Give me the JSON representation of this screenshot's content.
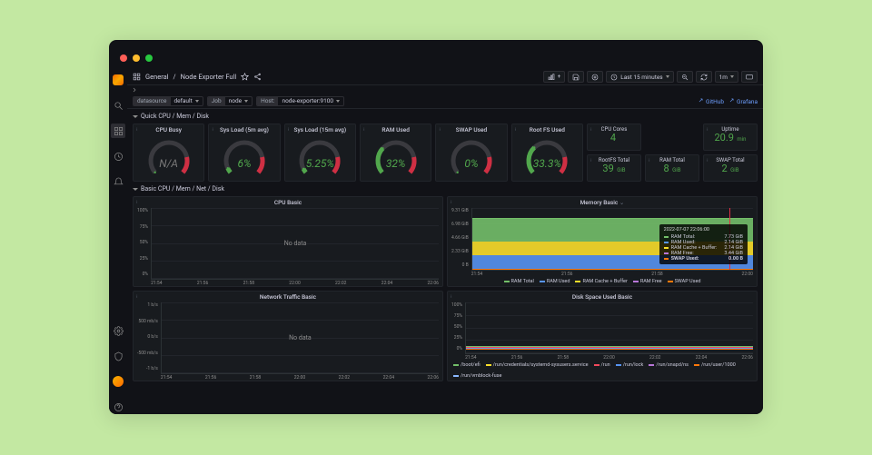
{
  "breadcrumb": {
    "part1": "General",
    "part2": "Node Exporter Full"
  },
  "topbar": {
    "time_range": "Last 15 minutes",
    "refresh": "1m"
  },
  "variables": {
    "datasource": {
      "label": "datasource",
      "value": "default"
    },
    "job": {
      "label": "Job",
      "value": "node"
    },
    "host": {
      "label": "Host:",
      "value": "node-exporter:9100"
    }
  },
  "external_links": {
    "github": "GitHub",
    "grafana": "Grafana"
  },
  "rows": {
    "quick": "Quick CPU / Mem / Disk",
    "basic": "Basic CPU / Mem / Net / Disk"
  },
  "gauges": [
    {
      "title": "CPU Busy",
      "value": "N/A",
      "pct": 0,
      "color": "#51a74c",
      "val_color": "#787878"
    },
    {
      "title": "Sys Load (5m avg)",
      "value": "6%",
      "pct": 6,
      "color": "#51a74c",
      "val_color": "#51a74c"
    },
    {
      "title": "Sys Load (15m avg)",
      "value": "5.25%",
      "pct": 5.25,
      "color": "#51a74c",
      "val_color": "#51a74c"
    },
    {
      "title": "RAM Used",
      "value": "32%",
      "pct": 32,
      "color": "#51a74c",
      "val_color": "#51a74c"
    },
    {
      "title": "SWAP Used",
      "value": "0%",
      "pct": 0,
      "color": "#51a74c",
      "val_color": "#51a74c"
    },
    {
      "title": "Root FS Used",
      "value": "33.3%",
      "pct": 33.3,
      "color": "#51a74c",
      "val_color": "#51a74c"
    }
  ],
  "stats": [
    {
      "title": "CPU Cores",
      "value": "4",
      "unit": ""
    },
    {
      "title": "RootFS Total",
      "value": "39",
      "unit": "GiB"
    },
    {
      "title": "Uptime",
      "value": "20.9",
      "unit": "min"
    },
    {
      "title": "RAM Total",
      "value": "8",
      "unit": "GiB"
    },
    {
      "title": "SWAP Total",
      "value": "2",
      "unit": "GiB"
    }
  ],
  "cpu_basic": {
    "title": "CPU Basic",
    "y_ticks": [
      "100%",
      "75%",
      "50%",
      "25%",
      "0%"
    ],
    "x_ticks": [
      "21:54",
      "21:56",
      "21:58",
      "22:00",
      "22:02",
      "22:04",
      "22:06"
    ],
    "no_data": "No data"
  },
  "memory_basic": {
    "title": "Memory Basic",
    "y_ticks": [
      "9.31 GiB",
      "6.98 GiB",
      "4.66 GiB",
      "2.33 GiB",
      "0 B"
    ],
    "x_ticks": [
      "21:54",
      "21:56",
      "21:58",
      "22:00"
    ],
    "series": [
      {
        "name": "RAM Total",
        "color": "#73bf69"
      },
      {
        "name": "RAM Used",
        "color": "#5794f2"
      },
      {
        "name": "RAM Cache + Buffer",
        "color": "#fade2a"
      },
      {
        "name": "RAM Free",
        "color": "#b877d9"
      },
      {
        "name": "SWAP Used",
        "color": "#ff780a"
      }
    ],
    "stack": {
      "total_pct": 83,
      "free_pct": 46,
      "cache_pct": 23,
      "used_pct": 23
    }
  },
  "tooltip": {
    "time": "2022-07-07 22:06:00",
    "rows": [
      {
        "label": "RAM Total:",
        "value": "7.73 GiB",
        "color": "#73bf69"
      },
      {
        "label": "RAM Used:",
        "value": "2.14 GiB",
        "color": "#5794f2"
      },
      {
        "label": "RAM Cache + Buffer:",
        "value": "2.14 GiB",
        "color": "#fade2a"
      },
      {
        "label": "RAM Free:",
        "value": "3.44 GiB",
        "color": "#b877d9"
      },
      {
        "label": "SWAP Used:",
        "value": "0.00 B",
        "color": "#ff780a",
        "bold": true
      }
    ]
  },
  "net_basic": {
    "title": "Network Traffic Basic",
    "y_ticks": [
      "1 b/s",
      "500 mb/s",
      "0 b/s",
      "-500 mb/s",
      "-1 b/s"
    ],
    "x_ticks": [
      "21:54",
      "21:56",
      "21:58",
      "22:00",
      "22:02",
      "22:04",
      "22:06"
    ],
    "no_data": "No data"
  },
  "disk_basic": {
    "title": "Disk Space Used Basic",
    "y_ticks": [
      "100%",
      "75%",
      "50%",
      "25%",
      "0%"
    ],
    "x_ticks": [
      "21:54",
      "21:56",
      "21:58",
      "22:00",
      "22:02",
      "22:04",
      "22:06"
    ],
    "series_levels": [
      {
        "name": "/boot/efi",
        "color": "#73bf69",
        "pct": 12
      },
      {
        "name": "/run/credentials/systemd-sysusers.service",
        "color": "#fade2a",
        "pct": 11
      },
      {
        "name": "/run",
        "color": "#f2495c",
        "pct": 10
      },
      {
        "name": "/run/lock",
        "color": "#5794f2",
        "pct": 9
      },
      {
        "name": "/run/snapd/ns",
        "color": "#b877d9",
        "pct": 8
      },
      {
        "name": "/run/user/1000",
        "color": "#ff780a",
        "pct": 7
      }
    ],
    "extra_legend": "/run/vmblock-fuse",
    "extra_color": "#8ab8ff"
  }
}
